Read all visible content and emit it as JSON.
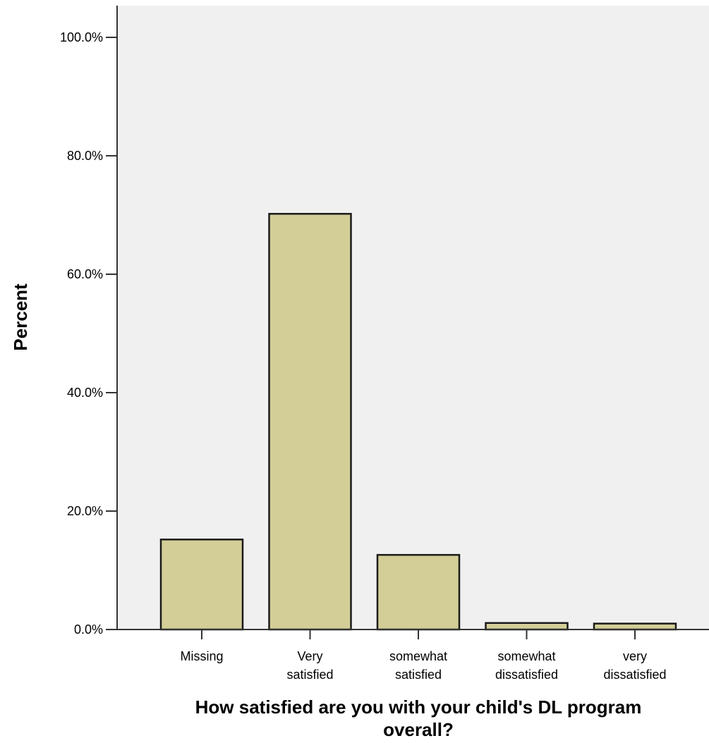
{
  "chart_data": {
    "type": "bar",
    "title": "",
    "ylabel": "Percent",
    "xlabel_lines": [
      "How satisfied are you with your child's DL program",
      "overall?"
    ],
    "ylim": [
      0,
      100
    ],
    "yticks": [
      0,
      20,
      40,
      60,
      80,
      100
    ],
    "ytick_labels": [
      "0.0%",
      "20.0%",
      "40.0%",
      "60.0%",
      "80.0%",
      "100.0%"
    ],
    "categories": [
      {
        "label_lines": [
          "Missing"
        ]
      },
      {
        "label_lines": [
          "Very",
          "satisfied"
        ]
      },
      {
        "label_lines": [
          "somewhat",
          "satisfied"
        ]
      },
      {
        "label_lines": [
          "somewhat",
          "dissatisfied"
        ]
      },
      {
        "label_lines": [
          "very",
          "dissatisfied"
        ]
      }
    ],
    "values": [
      15.2,
      70.2,
      12.6,
      1.1,
      1.0
    ],
    "grid": false,
    "colors": {
      "plot_background": "#f0f0f0",
      "bar_fill": "#d3ce97",
      "bar_stroke": "#1a1a1a",
      "axis": "#333333"
    }
  }
}
